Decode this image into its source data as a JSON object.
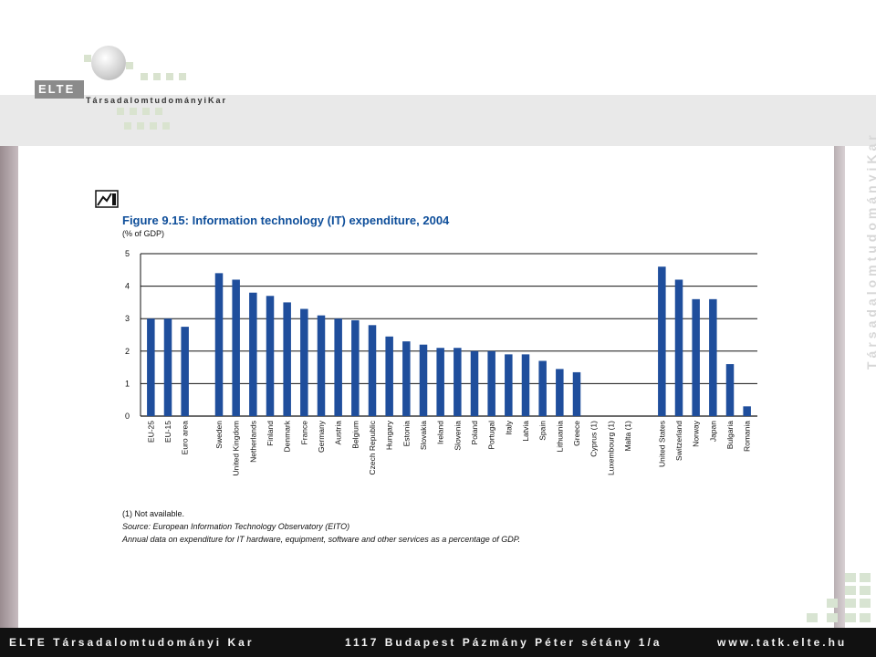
{
  "header": {
    "logo_text": "ELTE",
    "faculty_text": "TársadalomtudományiKar",
    "side_text": "TársadalomtudományiKar"
  },
  "footer": {
    "left": "ELTE Társadalomtudományi Kar",
    "center": "1117 Budapest Pázmány Péter sétány 1/a",
    "right": "www.tatk.elte.hu"
  },
  "chart_data": {
    "type": "bar",
    "title": "Figure 9.15: Information technology (IT) expenditure, 2004",
    "subtitle": "(% of GDP)",
    "ylim": [
      0,
      5
    ],
    "yticks": [
      0,
      1,
      2,
      3,
      4,
      5
    ],
    "grid": true,
    "color": "#1f4e9c",
    "categories": [
      "EU-25",
      "EU-15",
      "Euro area",
      "",
      "Sweden",
      "United Kingdom",
      "Netherlands",
      "Finland",
      "Denmark",
      "France",
      "Germany",
      "Austria",
      "Belgium",
      "Czech Republic",
      "Hungary",
      "Estonia",
      "Slovakia",
      "Ireland",
      "Slovenia",
      "Poland",
      "Portugal",
      "Italy",
      "Latvia",
      "Spain",
      "Lithuania",
      "Greece",
      "Cyprus (1)",
      "Luxembourg (1)",
      "Malta (1)",
      "",
      "United States",
      "Switzerland",
      "Norway",
      "Japan",
      "Bulgaria",
      "Romania"
    ],
    "values": [
      3.0,
      3.0,
      2.75,
      null,
      4.4,
      4.2,
      3.8,
      3.7,
      3.5,
      3.3,
      3.1,
      3.0,
      2.95,
      2.8,
      2.45,
      2.3,
      2.2,
      2.1,
      2.1,
      2.0,
      2.0,
      1.9,
      1.9,
      1.7,
      1.45,
      1.35,
      null,
      null,
      null,
      null,
      4.6,
      4.2,
      3.6,
      3.6,
      1.6,
      0.3
    ],
    "notes": {
      "na": "(1) Not available.",
      "source": "Source: European Information Technology Observatory (EITO)",
      "desc": "Annual data on expenditure for IT hardware, equipment, software and other services as a percentage of GDP."
    }
  }
}
